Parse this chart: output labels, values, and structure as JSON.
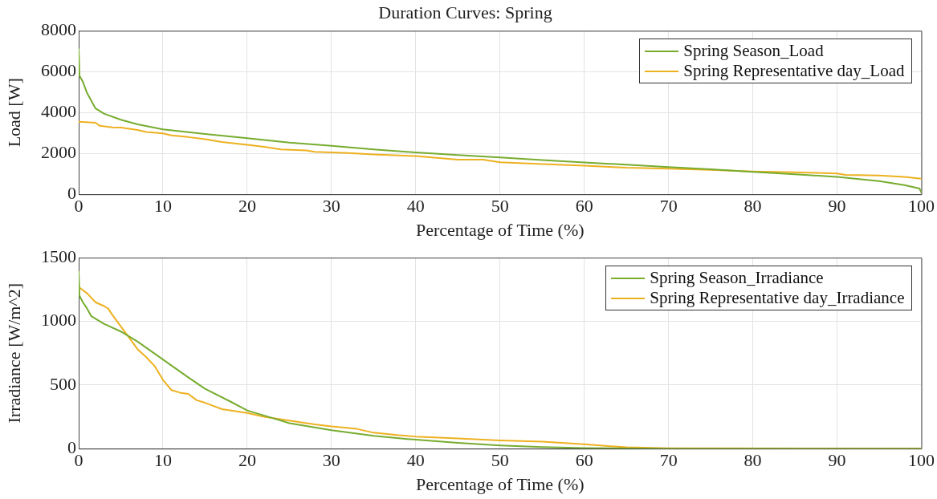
{
  "chart_data": [
    {
      "type": "line",
      "title": "Duration Curves: Spring",
      "xlabel": "Percentage of Time (%)",
      "ylabel": "Load [W]",
      "xlim": [
        0,
        100
      ],
      "xticks": [
        0,
        10,
        20,
        30,
        40,
        50,
        60,
        70,
        80,
        90,
        100
      ],
      "ylim": [
        0,
        8000
      ],
      "yticks": [
        0,
        2000,
        4000,
        6000,
        8000
      ],
      "grid": true,
      "legend": "top right",
      "line_style": "solid",
      "marker": "none",
      "series": [
        {
          "name": "Spring Season_Load",
          "color": "#77ac30",
          "x": [
            0,
            0.1,
            0.5,
            1,
            2,
            3,
            5,
            7,
            10,
            15,
            20,
            25,
            30,
            35,
            40,
            45,
            50,
            55,
            60,
            65,
            70,
            75,
            80,
            85,
            90,
            95,
            98,
            99.8,
            100
          ],
          "values": [
            7100,
            5800,
            5500,
            4950,
            4200,
            3950,
            3650,
            3420,
            3180,
            2950,
            2750,
            2530,
            2370,
            2200,
            2050,
            1920,
            1800,
            1680,
            1560,
            1450,
            1330,
            1220,
            1100,
            980,
            850,
            650,
            450,
            280,
            80
          ]
        },
        {
          "name": "Spring Representative day_Load",
          "color": "#edb120",
          "x": [
            0,
            2,
            2.5,
            4,
            5,
            7,
            8,
            10,
            11,
            13,
            15,
            17,
            20,
            22,
            24,
            27,
            28,
            32,
            35,
            40,
            45,
            48,
            50,
            55,
            60,
            65,
            70,
            75,
            80,
            85,
            90,
            91,
            95,
            98,
            100
          ],
          "values": [
            3550,
            3500,
            3350,
            3280,
            3270,
            3150,
            3050,
            2980,
            2880,
            2800,
            2700,
            2560,
            2420,
            2320,
            2200,
            2150,
            2080,
            2020,
            1950,
            1870,
            1700,
            1700,
            1570,
            1480,
            1400,
            1300,
            1250,
            1200,
            1120,
            1080,
            1020,
            950,
            920,
            850,
            760
          ]
        }
      ]
    },
    {
      "type": "line",
      "xlabel": "Percentage of Time (%)",
      "ylabel": "Irradiance [W/m^2]",
      "xlim": [
        0,
        100
      ],
      "xticks": [
        0,
        10,
        20,
        30,
        40,
        50,
        60,
        70,
        80,
        90,
        100
      ],
      "ylim": [
        0,
        1500
      ],
      "yticks": [
        0,
        500,
        1000,
        1500
      ],
      "grid": true,
      "legend": "top right",
      "line_style": "solid",
      "marker": "none",
      "series": [
        {
          "name": "Spring Season_Irradiance",
          "color": "#77ac30",
          "x": [
            0,
            0.1,
            0.5,
            1,
            1.5,
            3,
            5,
            7,
            10,
            13,
            15,
            18,
            20,
            23,
            25,
            30,
            35,
            40,
            45,
            50,
            55,
            60,
            65,
            70,
            100
          ],
          "values": [
            1390,
            1200,
            1150,
            1100,
            1040,
            980,
            920,
            840,
            700,
            560,
            470,
            370,
            300,
            240,
            200,
            145,
            100,
            70,
            45,
            25,
            12,
            5,
            2,
            0,
            0
          ]
        },
        {
          "name": "Spring Representative day_Irradiance",
          "color": "#edb120",
          "x": [
            0,
            1,
            2,
            3,
            3.5,
            4,
            5,
            6,
            7,
            8,
            9,
            10,
            11,
            12,
            13,
            14,
            15,
            17,
            20,
            22,
            25,
            28,
            30,
            33,
            35,
            38,
            40,
            45,
            50,
            55,
            60,
            65,
            70,
            100
          ],
          "values": [
            1270,
            1220,
            1150,
            1120,
            1100,
            1050,
            960,
            870,
            780,
            720,
            650,
            540,
            460,
            440,
            430,
            380,
            360,
            310,
            280,
            250,
            220,
            190,
            175,
            155,
            125,
            105,
            95,
            80,
            65,
            55,
            35,
            10,
            3,
            0
          ]
        }
      ]
    }
  ]
}
